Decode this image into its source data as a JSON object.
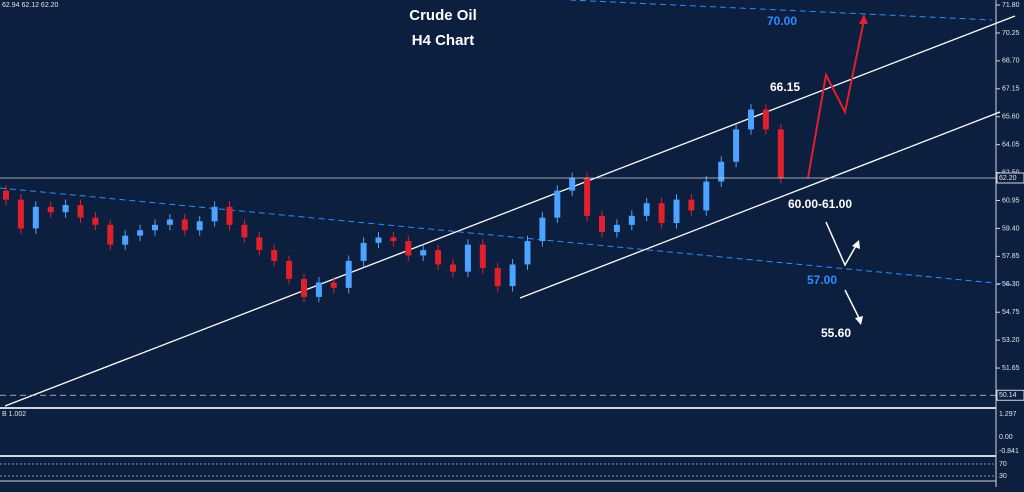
{
  "chart_data": {
    "type": "candlestick",
    "title": "Crude Oil",
    "subtitle": "H4 Chart",
    "header": "62.94 62.12 62.20",
    "up_color": "#4da3ff",
    "down_color": "#e0202a",
    "ylim": [
      49.6,
      72.08
    ],
    "yticks": [
      {
        "value": 71.8,
        "label": "71.80"
      },
      70.25,
      {
        "value": 68.7,
        "label": "68.70"
      },
      67.15,
      {
        "value": 65.6,
        "label": "65.60"
      },
      64.05,
      {
        "value": 62.5,
        "label": "62.50"
      },
      60.95,
      {
        "value": 59.4,
        "label": "59.40"
      },
      57.85,
      {
        "value": 56.3,
        "label": "56.30"
      },
      54.75,
      {
        "value": 53.2,
        "label": "53.20"
      },
      51.65
    ],
    "price_lines": [
      {
        "value": 62.2,
        "label": "62.20"
      },
      50.14
    ],
    "annotations": [
      "70.00",
      "66.15",
      "60.00-61.00",
      "57.00",
      "55.60"
    ],
    "open": [
      61.5,
      61.0,
      59.4,
      60.6,
      60.3,
      60.7,
      60.0,
      59.6,
      58.5,
      59.0,
      59.3,
      59.6,
      59.9,
      59.3,
      59.8,
      60.6,
      59.6,
      58.9,
      58.2,
      57.6,
      56.6,
      55.6,
      56.4,
      56.1,
      57.6,
      58.6,
      58.9,
      58.7,
      57.9,
      58.2,
      57.4,
      57.0,
      58.5,
      57.2,
      56.2,
      57.4,
      58.7,
      60.0,
      61.5,
      62.2,
      60.1,
      59.2,
      59.6,
      60.1,
      60.8,
      59.7,
      61.0,
      60.4,
      62.0,
      63.1,
      64.9,
      66.0,
      64.9
    ],
    "high": [
      61.8,
      61.3,
      60.9,
      60.9,
      61.0,
      61.0,
      60.3,
      59.9,
      59.3,
      59.6,
      59.9,
      60.2,
      60.2,
      60.1,
      60.9,
      60.9,
      59.9,
      59.2,
      58.5,
      57.9,
      56.9,
      56.7,
      56.7,
      57.9,
      58.9,
      59.2,
      59.2,
      59.0,
      58.5,
      58.5,
      57.7,
      58.8,
      58.8,
      57.5,
      57.7,
      59.0,
      60.3,
      61.8,
      62.5,
      62.5,
      60.4,
      59.9,
      60.4,
      61.1,
      61.1,
      61.3,
      61.3,
      62.3,
      63.4,
      65.2,
      66.3,
      66.3,
      65.2
    ],
    "low": [
      60.7,
      59.1,
      59.1,
      60.0,
      60.0,
      59.7,
      59.3,
      58.2,
      58.2,
      58.7,
      59.0,
      59.3,
      59.0,
      59.0,
      59.5,
      59.3,
      58.6,
      57.9,
      57.3,
      56.3,
      55.3,
      55.3,
      55.8,
      55.8,
      57.3,
      58.3,
      58.4,
      57.6,
      57.6,
      57.1,
      56.7,
      56.7,
      56.9,
      55.9,
      55.9,
      57.1,
      58.4,
      59.7,
      61.2,
      59.8,
      58.9,
      58.9,
      59.3,
      59.8,
      59.4,
      59.4,
      60.1,
      60.1,
      61.7,
      62.8,
      64.6,
      64.6,
      61.9
    ],
    "close": [
      61.0,
      59.4,
      60.6,
      60.3,
      60.7,
      60.0,
      59.6,
      58.5,
      59.0,
      59.3,
      59.6,
      59.9,
      59.3,
      59.8,
      60.6,
      59.6,
      58.9,
      58.2,
      57.6,
      56.6,
      55.6,
      56.4,
      56.1,
      57.6,
      58.6,
      58.9,
      58.7,
      57.9,
      58.2,
      57.4,
      57.0,
      58.5,
      57.2,
      56.2,
      57.4,
      58.7,
      60.0,
      61.5,
      62.2,
      60.1,
      59.2,
      59.6,
      60.1,
      60.8,
      59.7,
      61.0,
      60.4,
      62.0,
      63.1,
      64.9,
      66.0,
      64.9,
      62.2
    ],
    "indicators": {
      "macd_label": "B 1.002",
      "macd_ticks": [
        "1.297",
        "0.00",
        "-0.841"
      ],
      "rsi_ticks": [
        "70",
        "30"
      ]
    }
  }
}
